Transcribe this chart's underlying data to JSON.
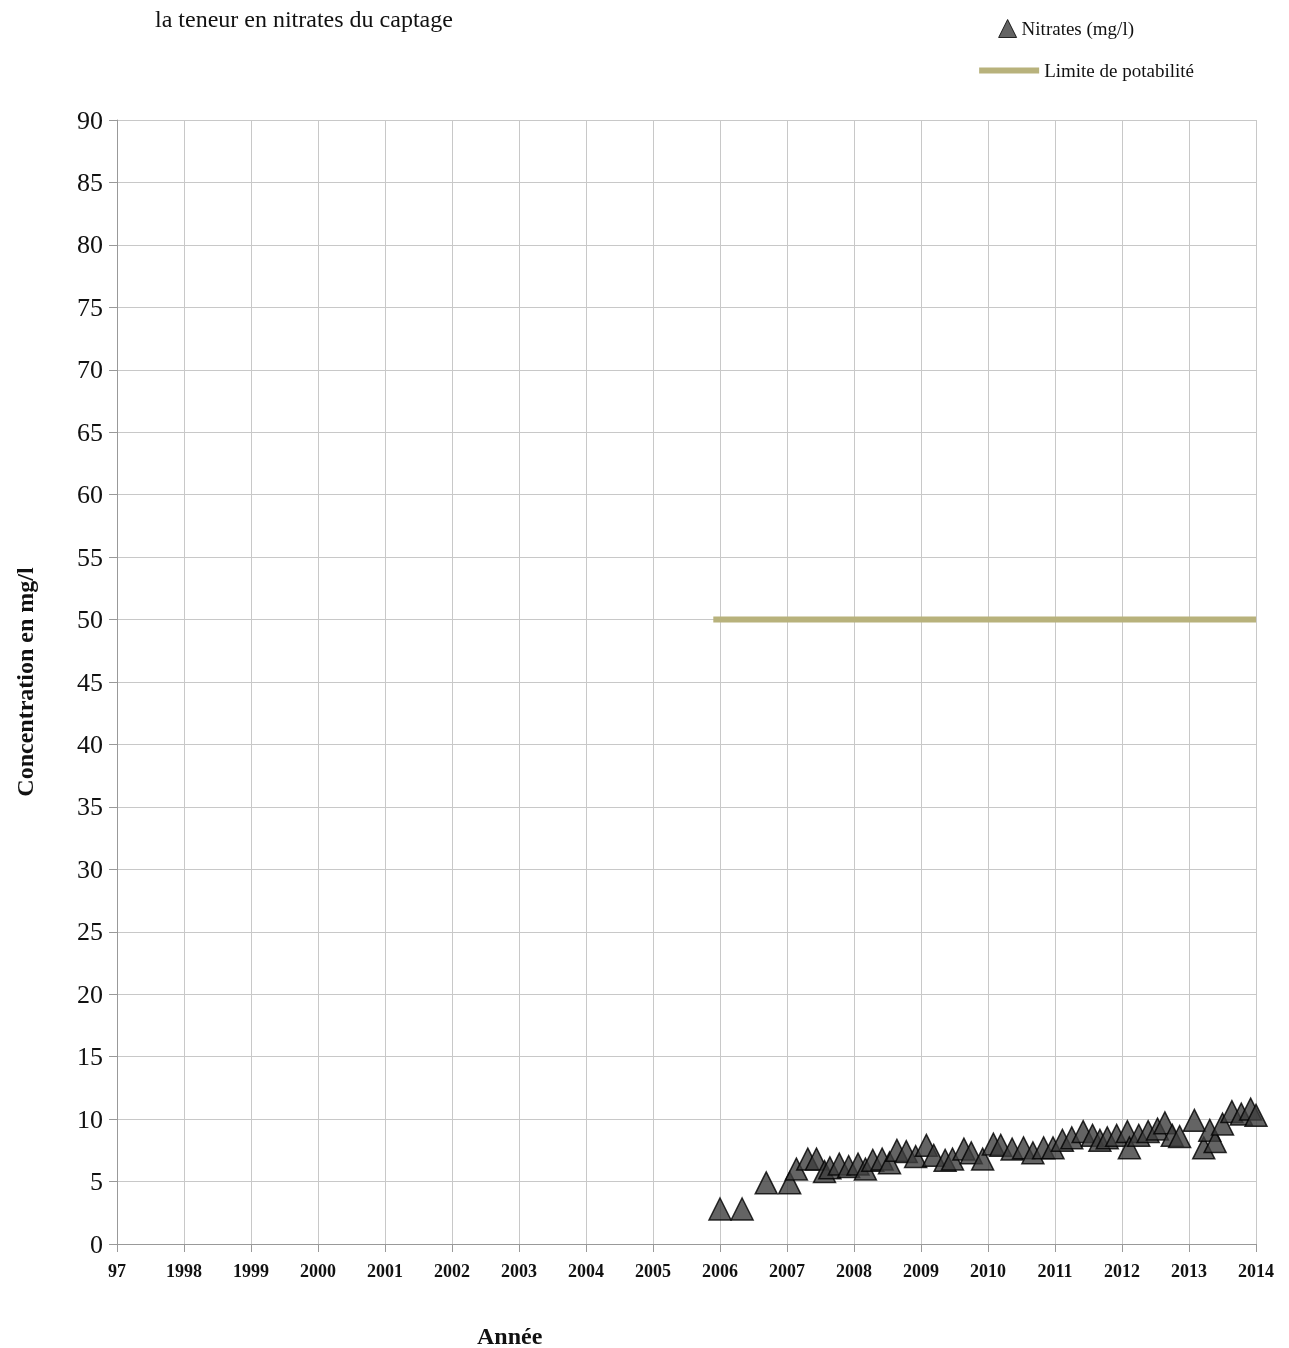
{
  "chart_data": {
    "type": "scatter",
    "title": "la teneur en nitrates du captage",
    "xlabel": "Année",
    "ylabel": "Concentration en mg/l",
    "xlim": [
      1997,
      2014
    ],
    "xticks": [
      {
        "value": 1997,
        "label": "97"
      },
      1998,
      1999,
      2000,
      2001,
      2002,
      2003,
      2004,
      2005,
      2006,
      2007,
      2008,
      2009,
      2010,
      2011,
      2012,
      2013,
      2014
    ],
    "ylim": [
      0,
      90
    ],
    "yticks": [
      0,
      5,
      10,
      15,
      20,
      25,
      30,
      35,
      40,
      45,
      50,
      55,
      60,
      65,
      70,
      75,
      80,
      85,
      90
    ],
    "grid": true,
    "legend": "top right",
    "series": [
      {
        "name": "Nitrates (mg/l)",
        "marker": "triangle",
        "color": "#3d3d3d",
        "x": [
          2006.0,
          2006.33,
          2006.69,
          2007.04,
          2007.14,
          2007.31,
          2007.44,
          2007.56,
          2007.64,
          2007.78,
          2007.92,
          2008.06,
          2008.17,
          2008.28,
          2008.42,
          2008.53,
          2008.64,
          2008.78,
          2008.92,
          2009.08,
          2009.19,
          2009.36,
          2009.47,
          2009.64,
          2009.75,
          2009.92,
          2010.08,
          2010.19,
          2010.36,
          2010.53,
          2010.67,
          2010.83,
          2010.97,
          2011.11,
          2011.25,
          2011.42,
          2011.56,
          2011.67,
          2011.78,
          2011.92,
          2012.08,
          2012.11,
          2012.25,
          2012.39,
          2012.53,
          2012.64,
          2012.75,
          2012.86,
          2013.08,
          2013.22,
          2013.31,
          2013.39,
          2013.5,
          2013.64,
          2013.78,
          2013.92,
          2014.0
        ],
        "values": [
          2.8,
          2.8,
          4.9,
          4.9,
          6.0,
          6.8,
          6.8,
          5.8,
          6.1,
          6.4,
          6.2,
          6.4,
          6.0,
          6.7,
          6.8,
          6.5,
          7.5,
          7.4,
          7.0,
          7.9,
          7.1,
          6.7,
          6.8,
          7.6,
          7.3,
          6.8,
          8.0,
          7.9,
          7.6,
          7.7,
          7.3,
          7.7,
          7.7,
          8.3,
          8.5,
          9.0,
          8.7,
          8.3,
          8.5,
          8.7,
          9.0,
          7.7,
          8.7,
          9.0,
          9.2,
          9.7,
          8.7,
          8.6,
          9.9,
          7.7,
          9.1,
          8.2,
          9.6,
          10.6,
          10.4,
          10.8,
          10.3
        ]
      },
      {
        "name": "Limite de potabilité",
        "type": "line",
        "marker": "none",
        "color": "#b8b27c",
        "x": [
          2005.9,
          2014
        ],
        "values": [
          50,
          50
        ]
      }
    ]
  }
}
